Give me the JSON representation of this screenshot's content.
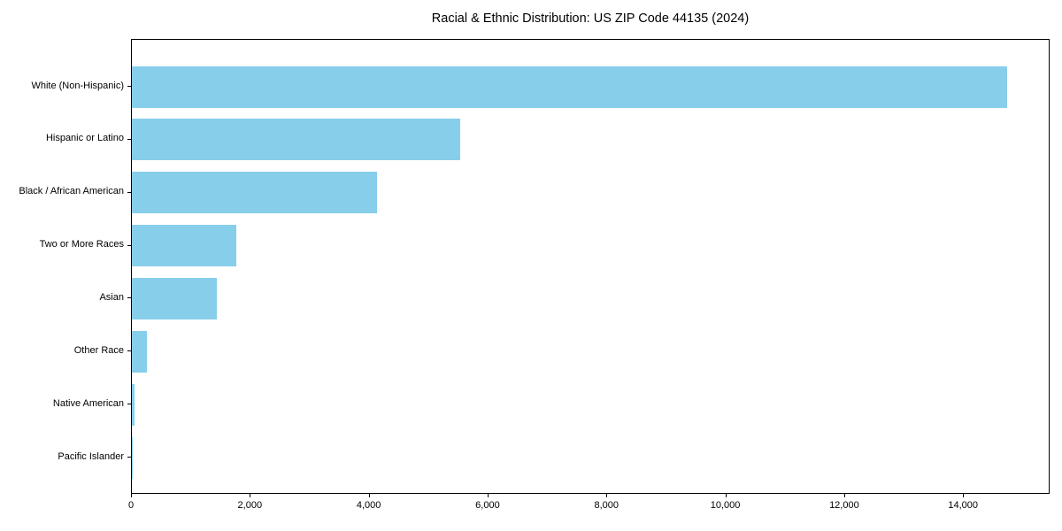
{
  "title": "Racial & Ethnic Distribution: US ZIP Code 44135 (2024)",
  "chart_data": {
    "type": "bar",
    "orientation": "horizontal",
    "title": "Racial & Ethnic Distribution: US ZIP Code 44135 (2024)",
    "xlabel": "",
    "ylabel": "",
    "categories": [
      "White (Non-Hispanic)",
      "Hispanic or Latino",
      "Black / African American",
      "Two or More Races",
      "Asian",
      "Other Race",
      "Native American",
      "Pacific Islander"
    ],
    "values": [
      14720,
      5530,
      4120,
      1750,
      1430,
      260,
      45,
      10
    ],
    "xlim": [
      0,
      15456
    ],
    "x_ticks": [
      0,
      2000,
      4000,
      6000,
      8000,
      10000,
      12000,
      14000
    ],
    "x_tick_labels": [
      "0",
      "2,000",
      "4,000",
      "6,000",
      "8,000",
      "10,000",
      "12,000",
      "14,000"
    ],
    "bar_color": "#87CEEB",
    "grid": false,
    "legend": false
  }
}
